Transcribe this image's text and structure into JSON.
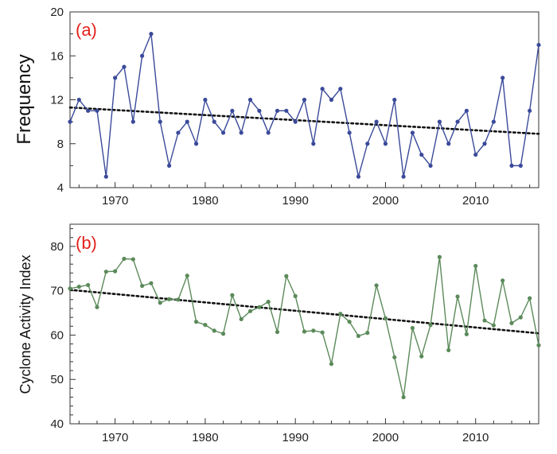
{
  "colors": {
    "panel_label": "#e3211c",
    "series_a": "#3a4a9a",
    "series_b": "#5b8a5a",
    "trend": "#111111",
    "axis": "#333333"
  },
  "chart_data": [
    {
      "type": "line",
      "panel_label": "(a)",
      "title": "",
      "xlabel": "",
      "ylabel": "Frequency",
      "xlim": [
        1965,
        2017
      ],
      "ylim": [
        4,
        20
      ],
      "yticks": [
        4,
        8,
        12,
        16,
        20
      ],
      "xticks": [
        1970,
        1980,
        1990,
        2000,
        2010
      ],
      "grid": false,
      "x": [
        1965,
        1966,
        1967,
        1968,
        1969,
        1970,
        1971,
        1972,
        1973,
        1974,
        1975,
        1976,
        1977,
        1978,
        1979,
        1980,
        1981,
        1982,
        1983,
        1984,
        1985,
        1986,
        1987,
        1988,
        1989,
        1990,
        1991,
        1992,
        1993,
        1994,
        1995,
        1996,
        1997,
        1998,
        1999,
        2000,
        2001,
        2002,
        2003,
        2004,
        2005,
        2006,
        2007,
        2008,
        2009,
        2010,
        2011,
        2012,
        2013,
        2014,
        2015,
        2016,
        2017
      ],
      "series": [
        {
          "values": [
            10,
            12,
            11,
            11,
            5,
            14,
            15,
            10,
            16,
            18,
            10,
            6,
            9,
            10,
            8,
            12,
            10,
            9,
            11,
            9,
            12,
            11,
            9,
            11,
            11,
            10,
            12,
            8,
            13,
            12,
            13,
            9,
            5,
            8,
            10,
            8,
            12,
            5,
            9,
            7,
            6,
            10,
            8,
            10,
            11,
            7,
            8,
            10,
            14,
            6,
            6,
            11,
            17
          ]
        }
      ],
      "trend": {
        "x": [
          1965,
          2017
        ],
        "y": [
          11.3,
          8.9
        ]
      }
    },
    {
      "type": "line",
      "panel_label": "(b)",
      "title": "",
      "xlabel": "",
      "ylabel": "Cyclone Activity Index",
      "xlim": [
        1965,
        2017
      ],
      "ylim": [
        40,
        85
      ],
      "yticks": [
        40,
        50,
        60,
        70,
        80
      ],
      "xticks": [
        1970,
        1980,
        1990,
        2000,
        2010
      ],
      "grid": false,
      "x": [
        1965,
        1966,
        1967,
        1968,
        1969,
        1970,
        1971,
        1972,
        1973,
        1974,
        1975,
        1976,
        1977,
        1978,
        1979,
        1980,
        1981,
        1982,
        1983,
        1984,
        1985,
        1986,
        1987,
        1988,
        1989,
        1990,
        1991,
        1992,
        1993,
        1994,
        1995,
        1996,
        1997,
        1998,
        1999,
        2000,
        2001,
        2002,
        2003,
        2004,
        2005,
        2006,
        2007,
        2008,
        2009,
        2010,
        2011,
        2012,
        2013,
        2014,
        2015,
        2016,
        2017
      ],
      "series": [
        {
          "values": [
            70.5,
            70.9,
            71.3,
            66.3,
            74.3,
            74.4,
            77.2,
            77.1,
            71.1,
            71.7,
            67.3,
            68.1,
            68.0,
            73.4,
            63.0,
            62.3,
            61.0,
            60.3,
            69.0,
            63.6,
            65.4,
            66.3,
            67.5,
            60.7,
            73.3,
            68.8,
            60.8,
            61.0,
            60.6,
            53.5,
            64.8,
            63.0,
            59.8,
            60.5,
            71.2,
            63.8,
            55.0,
            46.0,
            61.6,
            55.2,
            62.3,
            77.6,
            56.6,
            68.7,
            60.2,
            75.6,
            63.3,
            62.2,
            72.3,
            62.7,
            64.0,
            68.3,
            57.7
          ]
        }
      ],
      "trend": {
        "x": [
          1965,
          2017
        ],
        "y": [
          70.2,
          60.4
        ]
      }
    }
  ]
}
